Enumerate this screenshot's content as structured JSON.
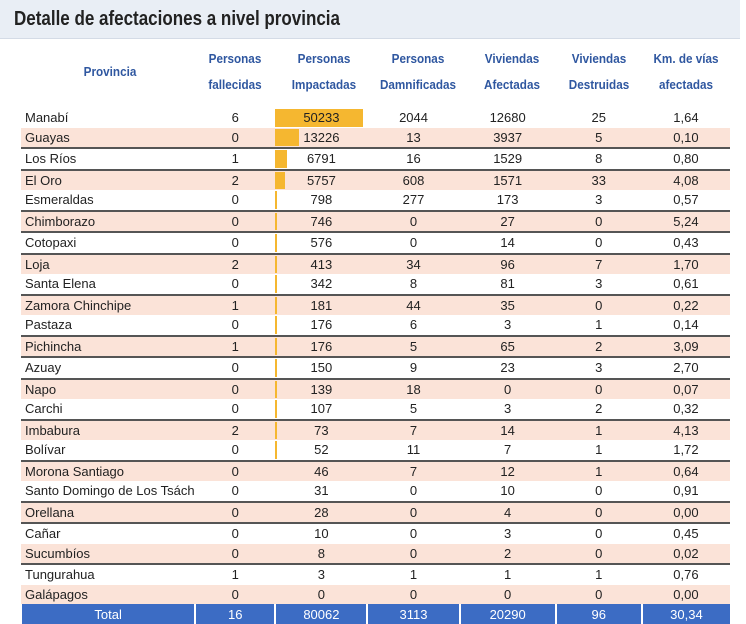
{
  "title": "Detalle de afectaciones a nivel provincia",
  "chart_data": {
    "type": "table",
    "title": "Detalle de afectaciones a nivel provincia",
    "columns": [
      "Provincia",
      "Personas fallecidas",
      "Personas Impactadas",
      "Personas Damnificadas",
      "Viviendas Afectadas",
      "Viviendas Destruidas",
      "Km. de vías afectadas"
    ],
    "bar_color": "#f5b730",
    "header_color": "#2f57a0",
    "total_color": "#3c6cc4",
    "rows": [
      [
        "Manabí",
        "6",
        "50233",
        "2044",
        "12680",
        "25",
        "1,64"
      ],
      [
        "Guayas",
        "0",
        "13226",
        "13",
        "3937",
        "5",
        "0,10"
      ],
      [
        "Los Ríos",
        "1",
        "6791",
        "16",
        "1529",
        "8",
        "0,80"
      ],
      [
        "El Oro",
        "2",
        "5757",
        "608",
        "1571",
        "33",
        "4,08"
      ],
      [
        "Esmeraldas",
        "0",
        "798",
        "277",
        "173",
        "3",
        "0,57"
      ],
      [
        "Chimborazo",
        "0",
        "746",
        "0",
        "27",
        "0",
        "5,24"
      ],
      [
        "Cotopaxi",
        "0",
        "576",
        "0",
        "14",
        "0",
        "0,43"
      ],
      [
        "Loja",
        "2",
        "413",
        "34",
        "96",
        "7",
        "1,70"
      ],
      [
        "Santa Elena",
        "0",
        "342",
        "8",
        "81",
        "3",
        "0,61"
      ],
      [
        "Zamora Chinchipe",
        "1",
        "181",
        "44",
        "35",
        "0",
        "0,22"
      ],
      [
        "Pastaza",
        "0",
        "176",
        "6",
        "3",
        "1",
        "0,14"
      ],
      [
        "Pichincha",
        "1",
        "176",
        "5",
        "65",
        "2",
        "3,09"
      ],
      [
        "Azuay",
        "0",
        "150",
        "9",
        "23",
        "3",
        "2,70"
      ],
      [
        "Napo",
        "0",
        "139",
        "18",
        "0",
        "0",
        "0,07"
      ],
      [
        "Carchi",
        "0",
        "107",
        "5",
        "3",
        "2",
        "0,32"
      ],
      [
        "Imbabura",
        "2",
        "73",
        "7",
        "14",
        "1",
        "4,13"
      ],
      [
        "Bolívar",
        "0",
        "52",
        "11",
        "7",
        "1",
        "1,72"
      ],
      [
        "Morona Santiago",
        "0",
        "46",
        "7",
        "12",
        "1",
        "0,64"
      ],
      [
        "Santo Domingo de Los Tsách",
        "0",
        "31",
        "0",
        "10",
        "0",
        "0,91"
      ],
      [
        "Orellana",
        "0",
        "28",
        "0",
        "4",
        "0",
        "0,00"
      ],
      [
        "Cañar",
        "0",
        "10",
        "0",
        "3",
        "0",
        "0,45"
      ],
      [
        "Sucumbíos",
        "0",
        "8",
        "0",
        "2",
        "0",
        "0,02"
      ],
      [
        "Tungurahua",
        "1",
        "3",
        "1",
        "1",
        "1",
        "0,76"
      ],
      [
        "Galápagos",
        "0",
        "0",
        "0",
        "0",
        "0",
        "0,00"
      ]
    ],
    "total": [
      "Total",
      "16",
      "80062",
      "3113",
      "20290",
      "96",
      "30,34"
    ]
  }
}
